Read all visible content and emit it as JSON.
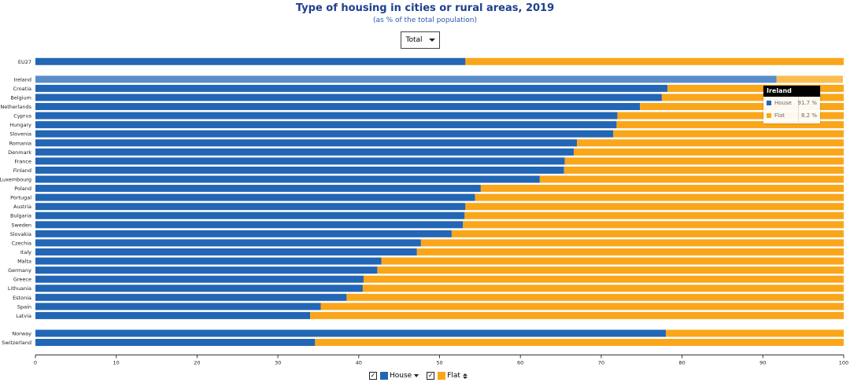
{
  "header": {
    "title": "Type of housing in cities or rural areas, 2019",
    "subtitle": "(as % of the total population)"
  },
  "filter": {
    "selected": "Total"
  },
  "colors": {
    "house": "#2266b5",
    "flat": "#faa61a",
    "house_highlight": "#5a8dca",
    "flat_highlight": "#fbbd50"
  },
  "tooltip": {
    "country": "Ireland",
    "rows": [
      {
        "label": "House",
        "value": "91.7 %"
      },
      {
        "label": "Flat",
        "value": "8.2 %"
      }
    ]
  },
  "legend": {
    "check_mark": "✓",
    "house_label": "House",
    "flat_label": "Flat"
  },
  "chart_data": {
    "type": "bar",
    "orientation": "horizontal",
    "stacked": true,
    "xlim": [
      0,
      100
    ],
    "xticks": [
      0,
      10,
      20,
      30,
      40,
      50,
      60,
      70,
      80,
      90,
      100
    ],
    "groups": [
      {
        "categories": [
          "EU27"
        ]
      },
      {
        "categories": [
          "Ireland",
          "Croatia",
          "Belgium",
          "Netherlands",
          "Cyprus",
          "Hungary",
          "Slovenia",
          "Romania",
          "Denmark",
          "France",
          "Finland",
          "Luxembourg",
          "Poland",
          "Portugal",
          "Austria",
          "Bulgaria",
          "Sweden",
          "Slovakia",
          "Czechia",
          "Italy",
          "Malta",
          "Germany",
          "Greece",
          "Lithuania",
          "Estonia",
          "Spain",
          "Latvia"
        ]
      },
      {
        "categories": [
          "Norway",
          "Switzerland"
        ]
      }
    ],
    "series": [
      {
        "name": "House",
        "values": [
          53.2,
          91.7,
          78.2,
          77.5,
          74.8,
          72.0,
          71.9,
          71.5,
          67.0,
          66.6,
          65.5,
          65.4,
          62.4,
          55.1,
          54.4,
          53.2,
          53.1,
          52.9,
          51.5,
          47.7,
          47.2,
          42.8,
          42.3,
          40.6,
          40.5,
          38.5,
          35.3,
          34.0,
          78.0,
          34.6
        ]
      },
      {
        "name": "Flat",
        "values": [
          46.8,
          8.2,
          21.8,
          22.5,
          25.2,
          28.0,
          28.1,
          28.5,
          33.0,
          33.4,
          34.5,
          34.6,
          37.6,
          44.9,
          45.6,
          46.8,
          46.9,
          47.1,
          48.5,
          52.3,
          52.8,
          57.2,
          57.7,
          59.4,
          59.5,
          61.5,
          64.7,
          66.0,
          22.0,
          65.4
        ]
      }
    ],
    "highlighted": "Ireland"
  }
}
